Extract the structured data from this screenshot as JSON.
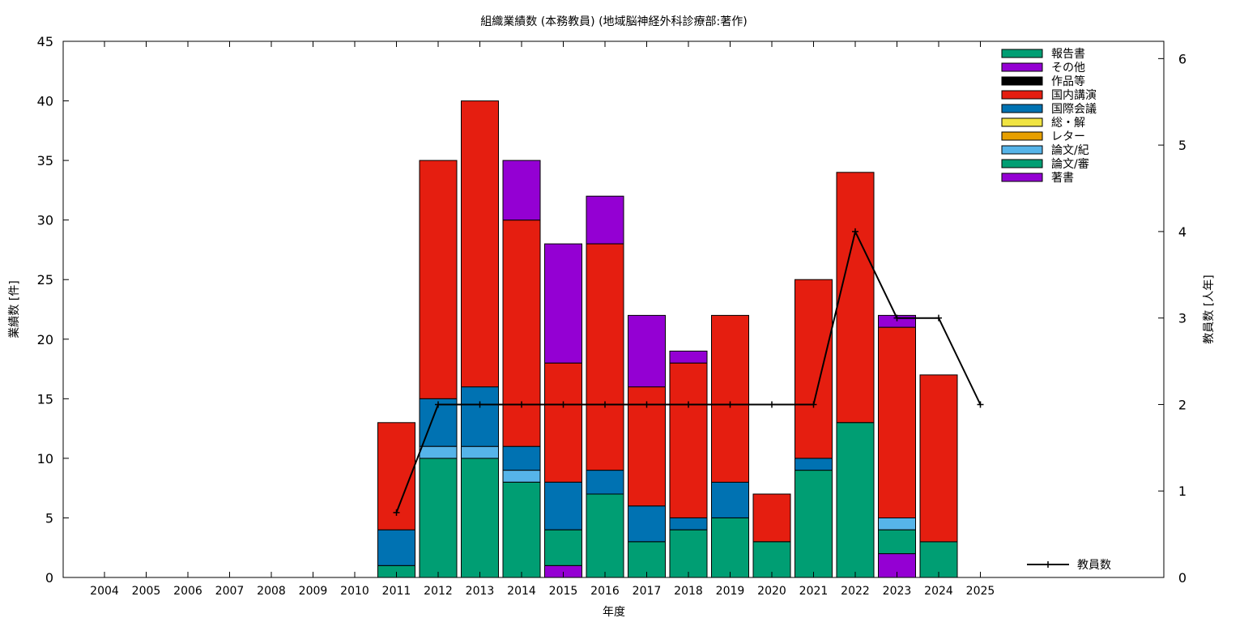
{
  "chart_data": {
    "type": "bar",
    "title": "組織業績数 (本務教員) (地域脳神経外科診療部:著作)",
    "xlabel": "年度",
    "ylabel": "業績数 [件]",
    "y2label": "教員数 [人年]",
    "ylim": [
      0,
      45
    ],
    "y2lim": [
      0,
      6.2
    ],
    "yticks": [
      0,
      5,
      10,
      15,
      20,
      25,
      30,
      35,
      40,
      45
    ],
    "y2ticks": [
      0,
      1,
      2,
      3,
      4,
      5,
      6
    ],
    "grid": false,
    "legend_position": "top-right",
    "categories": [
      "2004",
      "2005",
      "2006",
      "2007",
      "2008",
      "2009",
      "2010",
      "2011",
      "2012",
      "2013",
      "2014",
      "2015",
      "2016",
      "2017",
      "2018",
      "2019",
      "2020",
      "2021",
      "2022",
      "2023",
      "2024",
      "2025"
    ],
    "series": [
      {
        "name": "著書",
        "color": "#9400d3",
        "values": [
          0,
          0,
          0,
          0,
          0,
          0,
          0,
          0,
          0,
          0,
          0,
          1,
          0,
          0,
          0,
          0,
          0,
          0,
          0,
          2,
          0,
          0
        ]
      },
      {
        "name": "論文/審",
        "color": "#009e73",
        "values": [
          0,
          0,
          0,
          0,
          0,
          0,
          0,
          1,
          10,
          10,
          8,
          3,
          7,
          3,
          4,
          5,
          3,
          9,
          13,
          2,
          3,
          0
        ]
      },
      {
        "name": "論文/紀",
        "color": "#56b4e9",
        "values": [
          0,
          0,
          0,
          0,
          0,
          0,
          0,
          0,
          1,
          1,
          1,
          0,
          0,
          0,
          0,
          0,
          0,
          0,
          0,
          1,
          0,
          0
        ]
      },
      {
        "name": "レター",
        "color": "#e69f00",
        "values": [
          0,
          0,
          0,
          0,
          0,
          0,
          0,
          0,
          0,
          0,
          0,
          0,
          0,
          0,
          0,
          0,
          0,
          0,
          0,
          0,
          0,
          0
        ]
      },
      {
        "name": "総・解",
        "color": "#f0e442",
        "values": [
          0,
          0,
          0,
          0,
          0,
          0,
          0,
          0,
          0,
          0,
          0,
          0,
          0,
          0,
          0,
          0,
          0,
          0,
          0,
          0,
          0,
          0
        ]
      },
      {
        "name": "国際会議",
        "color": "#0072b2",
        "values": [
          0,
          0,
          0,
          0,
          0,
          0,
          0,
          3,
          4,
          5,
          2,
          4,
          2,
          3,
          1,
          3,
          0,
          1,
          0,
          0,
          0,
          0
        ]
      },
      {
        "name": "国内講演",
        "color": "#e51e10",
        "values": [
          0,
          0,
          0,
          0,
          0,
          0,
          0,
          9,
          20,
          24,
          19,
          10,
          19,
          10,
          13,
          14,
          4,
          15,
          21,
          16,
          14,
          0
        ]
      },
      {
        "name": "作品等",
        "color": "#000000",
        "values": [
          0,
          0,
          0,
          0,
          0,
          0,
          0,
          0,
          0,
          0,
          0,
          0,
          0,
          0,
          0,
          0,
          0,
          0,
          0,
          0,
          0,
          0
        ]
      },
      {
        "name": "その他",
        "color": "#9400d3",
        "values": [
          0,
          0,
          0,
          0,
          0,
          0,
          0,
          0,
          0,
          0,
          5,
          10,
          4,
          6,
          1,
          0,
          0,
          0,
          0,
          1,
          0,
          0
        ]
      },
      {
        "name": "報告書",
        "color": "#009e73",
        "values": [
          0,
          0,
          0,
          0,
          0,
          0,
          0,
          0,
          0,
          0,
          0,
          0,
          0,
          0,
          0,
          0,
          0,
          0,
          0,
          0,
          0,
          0
        ]
      }
    ],
    "legend_order": [
      "報告書",
      "その他",
      "作品等",
      "国内講演",
      "国際会議",
      "総・解",
      "レター",
      "論文/紀",
      "論文/審",
      "著書"
    ],
    "line": {
      "name": "教員数",
      "color": "#000000",
      "axis": "right",
      "points": [
        {
          "x": "2011",
          "y": 0.75
        },
        {
          "x": "2012",
          "y": 2
        },
        {
          "x": "2013",
          "y": 2
        },
        {
          "x": "2014",
          "y": 2
        },
        {
          "x": "2015",
          "y": 2
        },
        {
          "x": "2016",
          "y": 2
        },
        {
          "x": "2017",
          "y": 2
        },
        {
          "x": "2018",
          "y": 2
        },
        {
          "x": "2019",
          "y": 2
        },
        {
          "x": "2020",
          "y": 2
        },
        {
          "x": "2021",
          "y": 2
        },
        {
          "x": "2022",
          "y": 4
        },
        {
          "x": "2023",
          "y": 3
        },
        {
          "x": "2024",
          "y": 3
        },
        {
          "x": "2025",
          "y": 2
        }
      ]
    }
  }
}
